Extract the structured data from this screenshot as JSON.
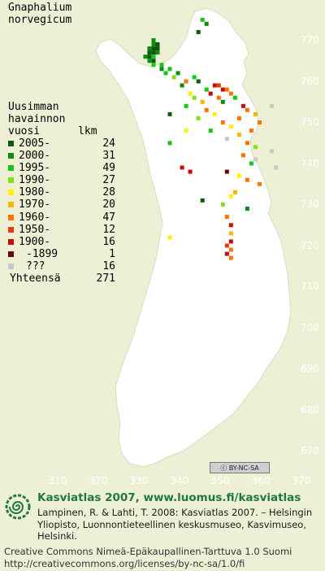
{
  "species_title": "Gnaphalium\nnorvegicum",
  "legend": {
    "heading": "Uusimman\nhavainnon\nvuosi      lkm",
    "rows": [
      {
        "label": "2005-",
        "count": "24",
        "color": "#0b5a10"
      },
      {
        "label": "2000-",
        "count": "31",
        "color": "#0d8c10"
      },
      {
        "label": "1995-",
        "count": "49",
        "color": "#17c417"
      },
      {
        "label": "1990-",
        "count": "27",
        "color": "#84e018"
      },
      {
        "label": "1980-",
        "count": "28",
        "color": "#fff200"
      },
      {
        "label": "1970-",
        "count": "20",
        "color": "#ffb400"
      },
      {
        "label": "1960-",
        "count": "47",
        "color": "#ff7400"
      },
      {
        "label": "1950-",
        "count": "12",
        "color": "#e43a0c"
      },
      {
        "label": "1900-",
        "count": "16",
        "color": "#c80a0a"
      },
      {
        "label": "-1899",
        "count": "1",
        "color": "#6a0606"
      },
      {
        "label": "???",
        "count": "16",
        "color": "#c8c8c8"
      }
    ],
    "total_label": "Yhteensä",
    "total_count": "271"
  },
  "axes": {
    "y_ticks": [
      "770",
      "760",
      "750",
      "740",
      "730",
      "720",
      "710",
      "700",
      "690",
      "680",
      "670"
    ],
    "x_ticks": [
      "310",
      "320",
      "330",
      "340",
      "350",
      "360",
      "370"
    ]
  },
  "license_badge": "BY-NC-SA",
  "footer": {
    "site": "Kasviatlas 2007, www.luomus.fi/kasviatlas",
    "citation": "Lampinen, R. & Lahti, T. 2008: Kasviatlas 2007. – Helsingin Yliopisto, Luonnontieteellinen keskusmuseo, Kasvimuseo, Helsinki.",
    "license_line1": "Creative Commons Nimeä-Epäkaupallinen-Tarttuva 1.0 Suomi",
    "license_line2": "http://creativecommons.org/licenses/by-nc-sa/1.0/fi"
  },
  "map_data": {
    "observations": [
      {
        "lat": 770,
        "lon": 333,
        "cat": 1
      },
      {
        "lat": 769,
        "lon": 333,
        "cat": 1
      },
      {
        "lat": 769,
        "lon": 334,
        "cat": 0
      },
      {
        "lat": 768,
        "lon": 333,
        "cat": 0
      },
      {
        "lat": 768,
        "lon": 334,
        "cat": 0
      },
      {
        "lat": 768,
        "lon": 332,
        "cat": 1
      },
      {
        "lat": 767,
        "lon": 332,
        "cat": 0
      },
      {
        "lat": 767,
        "lon": 333,
        "cat": 0
      },
      {
        "lat": 767,
        "lon": 334,
        "cat": 1
      },
      {
        "lat": 766,
        "lon": 331,
        "cat": 1
      },
      {
        "lat": 766,
        "lon": 332,
        "cat": 0
      },
      {
        "lat": 766,
        "lon": 333,
        "cat": 2
      },
      {
        "lat": 765,
        "lon": 332,
        "cat": 1
      },
      {
        "lat": 765,
        "lon": 333,
        "cat": 0
      },
      {
        "lat": 764,
        "lon": 333,
        "cat": 2
      },
      {
        "lat": 764,
        "lon": 335,
        "cat": 2
      },
      {
        "lat": 763,
        "lon": 335,
        "cat": 1
      },
      {
        "lat": 763,
        "lon": 337,
        "cat": 2
      },
      {
        "lat": 762,
        "lon": 336,
        "cat": 2
      },
      {
        "lat": 762,
        "lon": 339,
        "cat": 1
      },
      {
        "lat": 761,
        "lon": 338,
        "cat": 3
      },
      {
        "lat": 761,
        "lon": 343,
        "cat": 2
      },
      {
        "lat": 760,
        "lon": 344,
        "cat": 0
      },
      {
        "lat": 760,
        "lon": 341,
        "cat": 6
      },
      {
        "lat": 759,
        "lon": 340,
        "cat": 1
      },
      {
        "lat": 759,
        "lon": 348,
        "cat": 8
      },
      {
        "lat": 759,
        "lon": 349,
        "cat": 7
      },
      {
        "lat": 758,
        "lon": 350,
        "cat": 8
      },
      {
        "lat": 758,
        "lon": 351,
        "cat": 6
      },
      {
        "lat": 758,
        "lon": 346,
        "cat": 2
      },
      {
        "lat": 757,
        "lon": 342,
        "cat": 4
      },
      {
        "lat": 757,
        "lon": 347,
        "cat": 8
      },
      {
        "lat": 757,
        "lon": 352,
        "cat": 6
      },
      {
        "lat": 756,
        "lon": 343,
        "cat": 3
      },
      {
        "lat": 756,
        "lon": 349,
        "cat": 6
      },
      {
        "lat": 756,
        "lon": 353,
        "cat": 2
      },
      {
        "lat": 755,
        "lon": 345,
        "cat": 5
      },
      {
        "lat": 755,
        "lon": 350,
        "cat": 1
      },
      {
        "lat": 754,
        "lon": 341,
        "cat": 2
      },
      {
        "lat": 754,
        "lon": 355,
        "cat": 8
      },
      {
        "lat": 753,
        "lon": 346,
        "cat": 6
      },
      {
        "lat": 753,
        "lon": 356,
        "cat": 6
      },
      {
        "lat": 752,
        "lon": 348,
        "cat": 4
      },
      {
        "lat": 752,
        "lon": 358,
        "cat": 5
      },
      {
        "lat": 751,
        "lon": 344,
        "cat": 3
      },
      {
        "lat": 751,
        "lon": 354,
        "cat": 6
      },
      {
        "lat": 750,
        "lon": 350,
        "cat": 6
      },
      {
        "lat": 750,
        "lon": 359,
        "cat": 6
      },
      {
        "lat": 749,
        "lon": 352,
        "cat": 4
      },
      {
        "lat": 748,
        "lon": 347,
        "cat": 2
      },
      {
        "lat": 748,
        "lon": 357,
        "cat": 6
      },
      {
        "lat": 747,
        "lon": 354,
        "cat": 5
      },
      {
        "lat": 746,
        "lon": 351,
        "cat": 10
      },
      {
        "lat": 745,
        "lon": 356,
        "cat": 6
      },
      {
        "lat": 744,
        "lon": 358,
        "cat": 3
      },
      {
        "lat": 742,
        "lon": 355,
        "cat": 6
      },
      {
        "lat": 741,
        "lon": 358,
        "cat": 10
      },
      {
        "lat": 740,
        "lon": 357,
        "cat": 2
      },
      {
        "lat": 738,
        "lon": 351,
        "cat": 9
      },
      {
        "lat": 737,
        "lon": 354,
        "cat": 4
      },
      {
        "lat": 736,
        "lon": 356,
        "cat": 6
      },
      {
        "lat": 735,
        "lon": 359,
        "cat": 6
      },
      {
        "lat": 733,
        "lon": 353,
        "cat": 5
      },
      {
        "lat": 732,
        "lon": 352,
        "cat": 4
      },
      {
        "lat": 730,
        "lon": 350,
        "cat": 3
      },
      {
        "lat": 729,
        "lon": 356,
        "cat": 1
      },
      {
        "lat": 727,
        "lon": 351,
        "cat": 6
      },
      {
        "lat": 725,
        "lon": 352,
        "cat": 8
      },
      {
        "lat": 723,
        "lon": 352,
        "cat": 5
      },
      {
        "lat": 721,
        "lon": 352,
        "cat": 8
      },
      {
        "lat": 720,
        "lon": 351,
        "cat": 7
      },
      {
        "lat": 719,
        "lon": 352,
        "cat": 6
      },
      {
        "lat": 718,
        "lon": 351,
        "cat": 8
      },
      {
        "lat": 717,
        "lon": 352,
        "cat": 6
      },
      {
        "lat": 739,
        "lon": 340,
        "cat": 8
      },
      {
        "lat": 738,
        "lon": 342,
        "cat": 8
      },
      {
        "lat": 731,
        "lon": 345,
        "cat": 0
      },
      {
        "lat": 722,
        "lon": 337,
        "cat": 4
      },
      {
        "lat": 745,
        "lon": 337,
        "cat": 2
      },
      {
        "lat": 752,
        "lon": 337,
        "cat": 0
      },
      {
        "lat": 748,
        "lon": 341,
        "cat": 4
      },
      {
        "lat": 743,
        "lon": 362,
        "cat": 10
      },
      {
        "lat": 739,
        "lon": 363,
        "cat": 10
      },
      {
        "lat": 754,
        "lon": 362,
        "cat": 10
      },
      {
        "lat": 775,
        "lon": 345,
        "cat": 2
      },
      {
        "lat": 774,
        "lon": 346,
        "cat": 1
      },
      {
        "lat": 772,
        "lon": 344,
        "cat": 0
      }
    ]
  }
}
